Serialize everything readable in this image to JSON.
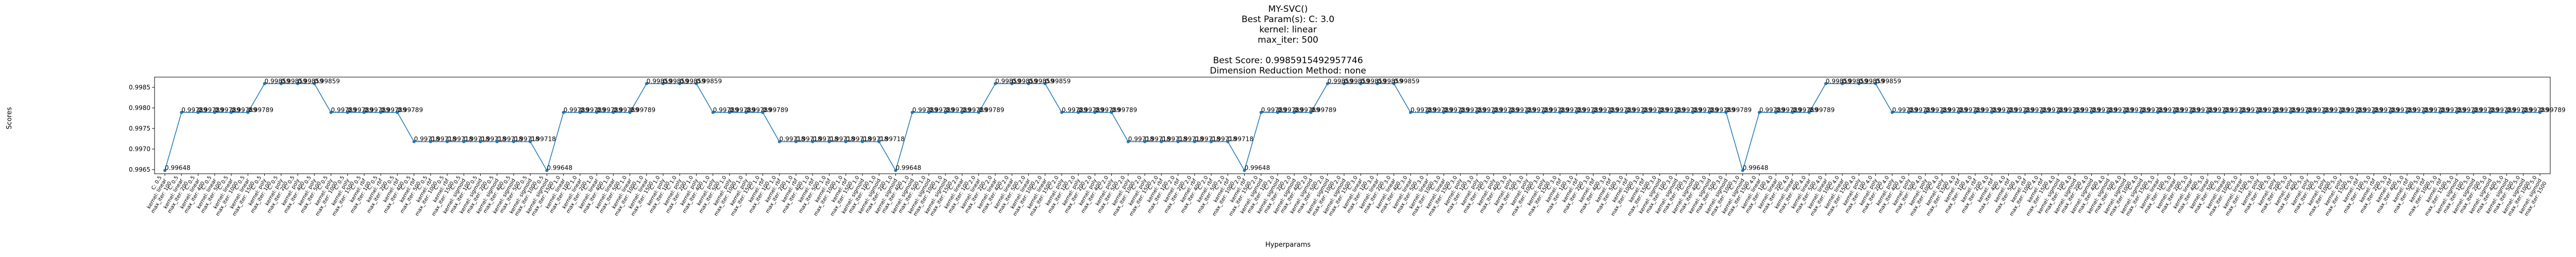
{
  "chart_data": {
    "type": "line",
    "title_lines": [
      "MY-SVC()",
      "Best Param(s): C: 3.0",
      "kernel: linear",
      "max_iter: 500",
      "",
      "Best Score: 0.9985915492957746",
      "Dimension Reduction Method: none"
    ],
    "xlabel": "Hyperparams",
    "ylabel": "Scores",
    "ylim": [
      0.9964,
      0.99875
    ],
    "yticks": [
      0.9965,
      0.997,
      0.9975,
      0.998,
      0.9985
    ],
    "ytick_labels": [
      "0.9965",
      "0.9970",
      "0.9975",
      "0.9980",
      "0.9985"
    ],
    "grid": false,
    "color": "#1f77b4",
    "C_values": [
      "0.5",
      "1.0",
      "2.0",
      "3.0",
      "4.0",
      "5.0"
    ],
    "kernels": [
      "linear",
      "poly",
      "rbf",
      "sigmoid"
    ],
    "max_iters": [
      "100",
      "200",
      "400",
      "500",
      "1000",
      "1500"
    ],
    "values_by_C": [
      [
        0.99648,
        0.99789,
        0.99789,
        0.99789,
        0.99789,
        0.99789,
        0.99859,
        0.99859,
        0.99859,
        0.99859,
        0.99789,
        0.99789,
        0.99789,
        0.99789,
        0.99789,
        0.99718,
        0.99718,
        0.99718,
        0.99718,
        0.99718,
        0.99718,
        0.99718,
        0.99718,
        0.99648
      ],
      [
        0.99789,
        0.99789,
        0.99789,
        0.99789,
        0.99789,
        0.99859,
        0.99859,
        0.99859,
        0.99859,
        0.99789,
        0.99789,
        0.99789,
        0.99789,
        0.99718,
        0.99718,
        0.99718,
        0.99718,
        0.99718,
        0.99718,
        0.99718,
        0.99648,
        0.99789,
        0.99789,
        0.99789
      ],
      [
        0.99789,
        0.99789,
        0.99859,
        0.99859,
        0.99859,
        0.99859,
        0.99789,
        0.99789,
        0.99789,
        0.99789,
        0.99718,
        0.99718,
        0.99718,
        0.99718,
        0.99718,
        0.99718,
        0.99718,
        0.99648,
        0.99789,
        0.99789,
        0.99789,
        0.99789,
        0.99859,
        0.99859
      ],
      [
        0.99859,
        0.99859,
        0.99859,
        0.99789,
        0.99789,
        0.99789,
        0.99789,
        0.99789,
        0.99789,
        0.99789,
        0.99789,
        0.99789,
        0.99789,
        0.99789,
        0.99789,
        0.99789,
        0.99789,
        0.99789,
        0.99789,
        0.99789,
        0.99789,
        0.99789,
        0.99789,
        0.99648
      ],
      [
        0.99789,
        0.99789,
        0.99789,
        0.99789,
        0.99859,
        0.99859,
        0.99859,
        0.99859,
        0.99789,
        0.99789,
        0.99789,
        0.99789,
        0.99789,
        0.99789,
        0.99789,
        0.99789,
        0.99789,
        0.99789,
        0.99789,
        0.99789,
        0.99789,
        0.99789,
        0.99789,
        0.99789
      ],
      [
        0.99789,
        0.99789,
        0.99789,
        0.99789,
        0.99789,
        0.99789,
        0.99789,
        0.99789,
        0.99789,
        0.99789,
        0.99789,
        0.99789,
        0.99789,
        0.99789,
        0.99789,
        0.99789,
        0.99789,
        0.99789,
        0.99789,
        0.99789,
        0.99789,
        0.99789,
        0.99789,
        0.99789
      ]
    ]
  }
}
